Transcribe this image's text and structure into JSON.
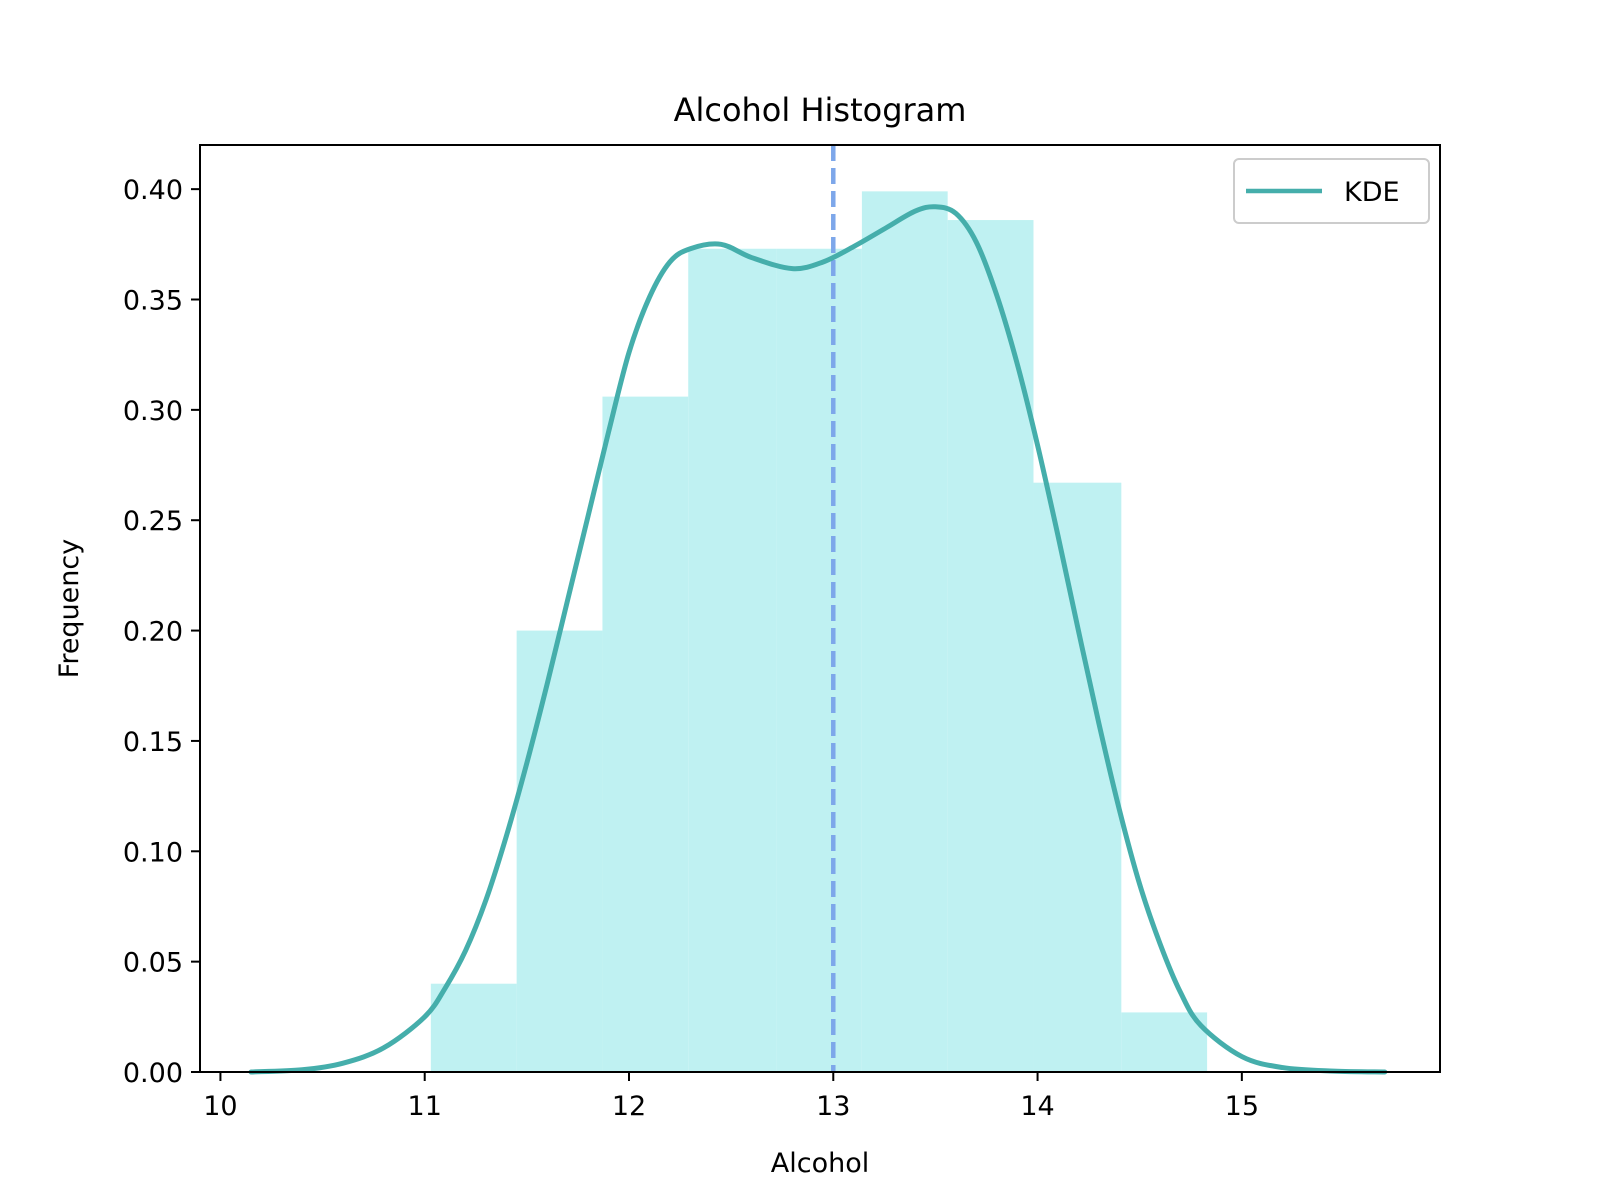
{
  "chart_data": {
    "type": "bar",
    "title": "Alcohol Histogram",
    "xlabel": "Alcohol",
    "ylabel": "Frequency",
    "xlim": [
      9.9,
      15.97
    ],
    "ylim": [
      0,
      0.42
    ],
    "xticks": [
      10,
      11,
      12,
      13,
      14,
      15
    ],
    "xtick_labels": [
      "10",
      "11",
      "12",
      "13",
      "14",
      "15"
    ],
    "yticks": [
      0,
      0.05,
      0.1,
      0.15,
      0.2,
      0.25,
      0.3,
      0.35,
      0.4
    ],
    "ytick_labels": [
      "0.00",
      "0.05",
      "0.10",
      "0.15",
      "0.20",
      "0.25",
      "0.30",
      "0.35",
      "0.40"
    ],
    "grid": false,
    "legend_position": "top-right",
    "legend": [
      {
        "label": "KDE",
        "style": "line",
        "color": "#45aeab"
      }
    ],
    "histogram": {
      "color": "#bff1f2",
      "bins": [
        {
          "x0": 11.03,
          "x1": 11.45,
          "value": 0.04
        },
        {
          "x0": 11.45,
          "x1": 11.87,
          "value": 0.2
        },
        {
          "x0": 11.87,
          "x1": 12.29,
          "value": 0.306
        },
        {
          "x0": 12.29,
          "x1": 12.72,
          "value": 0.373
        },
        {
          "x0": 12.72,
          "x1": 13.14,
          "value": 0.373
        },
        {
          "x0": 13.14,
          "x1": 13.56,
          "value": 0.399
        },
        {
          "x0": 13.56,
          "x1": 13.98,
          "value": 0.386
        },
        {
          "x0": 13.98,
          "x1": 14.41,
          "value": 0.267
        },
        {
          "x0": 14.41,
          "x1": 14.83,
          "value": 0.027
        }
      ]
    },
    "kde": {
      "name": "KDE",
      "color": "#45aeab",
      "points": [
        [
          10.15,
          0.0
        ],
        [
          10.4,
          0.001
        ],
        [
          10.6,
          0.004
        ],
        [
          10.8,
          0.011
        ],
        [
          11.0,
          0.025
        ],
        [
          11.1,
          0.038
        ],
        [
          11.2,
          0.055
        ],
        [
          11.3,
          0.078
        ],
        [
          11.4,
          0.107
        ],
        [
          11.5,
          0.14
        ],
        [
          11.6,
          0.176
        ],
        [
          11.7,
          0.214
        ],
        [
          11.8,
          0.252
        ],
        [
          11.9,
          0.29
        ],
        [
          12.0,
          0.326
        ],
        [
          12.1,
          0.351
        ],
        [
          12.2,
          0.367
        ],
        [
          12.3,
          0.373
        ],
        [
          12.45,
          0.375
        ],
        [
          12.6,
          0.369
        ],
        [
          12.8,
          0.364
        ],
        [
          12.95,
          0.367
        ],
        [
          13.1,
          0.374
        ],
        [
          13.25,
          0.382
        ],
        [
          13.4,
          0.39
        ],
        [
          13.5,
          0.392
        ],
        [
          13.6,
          0.389
        ],
        [
          13.7,
          0.376
        ],
        [
          13.8,
          0.352
        ],
        [
          13.9,
          0.321
        ],
        [
          14.0,
          0.284
        ],
        [
          14.1,
          0.243
        ],
        [
          14.2,
          0.2
        ],
        [
          14.3,
          0.158
        ],
        [
          14.4,
          0.119
        ],
        [
          14.5,
          0.085
        ],
        [
          14.6,
          0.058
        ],
        [
          14.7,
          0.036
        ],
        [
          14.8,
          0.021
        ],
        [
          15.0,
          0.007
        ],
        [
          15.2,
          0.002
        ],
        [
          15.45,
          0.0004
        ],
        [
          15.7,
          0.0
        ]
      ]
    },
    "mean_line": {
      "x": 13.0,
      "color": "#7da7ea",
      "style": "dashed"
    }
  }
}
